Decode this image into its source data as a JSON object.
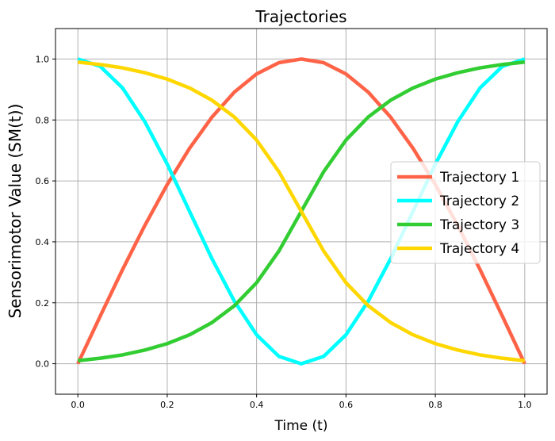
{
  "chart_data": {
    "type": "line",
    "title": "Trajectories",
    "xlabel": "Time (t)",
    "ylabel": "Sensorimotor Value (SM(t))",
    "xlim": [
      -0.05,
      1.05
    ],
    "ylim": [
      -0.1,
      1.1
    ],
    "xticks": [
      0.0,
      0.2,
      0.4,
      0.6,
      0.8,
      1.0
    ],
    "xtick_labels": [
      "0.0",
      "0.2",
      "0.4",
      "0.6",
      "0.8",
      "1.0"
    ],
    "yticks": [
      0.0,
      0.2,
      0.4,
      0.6,
      0.8,
      1.0
    ],
    "ytick_labels": [
      "0.0",
      "0.2",
      "0.4",
      "0.6",
      "0.8",
      "1.0"
    ],
    "grid": true,
    "legend_position": "center-right",
    "x": [
      0.0,
      0.05,
      0.1,
      0.15,
      0.2,
      0.25,
      0.3,
      0.35,
      0.4,
      0.45,
      0.5,
      0.55,
      0.6,
      0.65,
      0.7,
      0.75,
      0.8,
      0.85,
      0.9,
      0.95,
      1.0
    ],
    "series": [
      {
        "name": "Trajectory 1",
        "color": "#ff6347",
        "values": [
          0.0,
          0.156,
          0.309,
          0.454,
          0.588,
          0.707,
          0.809,
          0.891,
          0.951,
          0.988,
          1.0,
          0.988,
          0.951,
          0.891,
          0.809,
          0.707,
          0.588,
          0.454,
          0.309,
          0.156,
          0.0
        ]
      },
      {
        "name": "Trajectory 2",
        "color": "#00ffff",
        "values": [
          1.0,
          0.976,
          0.905,
          0.794,
          0.655,
          0.5,
          0.345,
          0.206,
          0.095,
          0.024,
          0.0,
          0.024,
          0.095,
          0.206,
          0.345,
          0.5,
          0.655,
          0.794,
          0.905,
          0.976,
          1.0
        ]
      },
      {
        "name": "Trajectory 3",
        "color": "#32cd32",
        "values": [
          0.01,
          0.018,
          0.029,
          0.045,
          0.066,
          0.095,
          0.135,
          0.19,
          0.266,
          0.37,
          0.5,
          0.63,
          0.734,
          0.81,
          0.865,
          0.905,
          0.934,
          0.955,
          0.971,
          0.982,
          0.99
        ]
      },
      {
        "name": "Trajectory 4",
        "color": "#ffd700",
        "values": [
          0.99,
          0.982,
          0.971,
          0.955,
          0.934,
          0.905,
          0.865,
          0.81,
          0.734,
          0.63,
          0.5,
          0.37,
          0.266,
          0.19,
          0.135,
          0.095,
          0.066,
          0.045,
          0.029,
          0.018,
          0.01
        ]
      }
    ]
  }
}
